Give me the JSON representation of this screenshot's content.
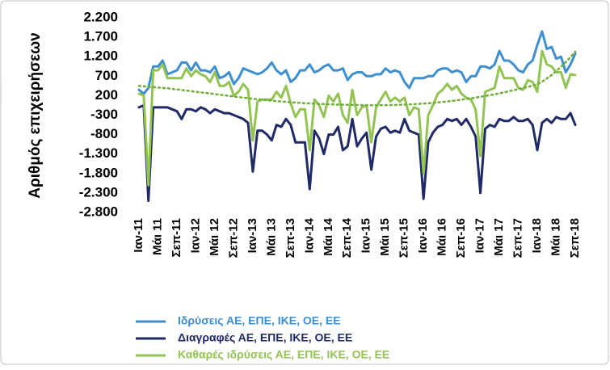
{
  "chart_data": {
    "type": "line",
    "y_label": "Αριθμός επιχειρήσεων",
    "categories": [
      "Ιαν-11",
      null,
      null,
      null,
      "Μάι 11",
      null,
      null,
      null,
      "Σεπ-11",
      null,
      null,
      null,
      "Ιαν-12",
      null,
      null,
      null,
      "Μάι 12",
      null,
      null,
      null,
      "Σεπ-12",
      null,
      null,
      null,
      "Ιαν-13",
      null,
      null,
      null,
      "Μάι 13",
      null,
      null,
      null,
      "Σεπ-13",
      null,
      null,
      null,
      "Ιαν-14",
      null,
      null,
      null,
      "Μάι 14",
      null,
      null,
      null,
      "Σεπ-14",
      null,
      null,
      null,
      "Ιαν-15",
      null,
      null,
      null,
      "Μάι 15",
      null,
      null,
      null,
      "Σεπ-15",
      null,
      null,
      null,
      "Ιαν-16",
      null,
      null,
      null,
      "Μάι 16",
      null,
      null,
      null,
      "Σεπ-16",
      null,
      null,
      null,
      "Ιαν-17",
      null,
      null,
      null,
      "Μάι 17",
      null,
      null,
      null,
      "Σεπ-17",
      null,
      null,
      null,
      "Ιαν-18",
      null,
      null,
      null,
      "Μάι 18",
      null,
      null,
      null,
      "Σεπ-18"
    ],
    "series": [
      {
        "name": "Ιδρύσεις ΑΕ, ΕΠΕ, ΙΚΕ, ΟΕ, ΕΕ",
        "color": "#3d8fd0",
        "values": [
          350,
          250,
          400,
          950,
          950,
          1100,
          750,
          800,
          850,
          1050,
          1050,
          850,
          1050,
          850,
          850,
          800,
          950,
          650,
          700,
          800,
          500,
          650,
          900,
          850,
          800,
          750,
          800,
          900,
          1050,
          850,
          750,
          850,
          550,
          650,
          850,
          850,
          1000,
          800,
          850,
          950,
          1000,
          850,
          850,
          900,
          600,
          750,
          800,
          800,
          700,
          700,
          750,
          750,
          900,
          800,
          850,
          800,
          550,
          400,
          650,
          650,
          650,
          700,
          700,
          850,
          900,
          900,
          800,
          850,
          800,
          550,
          700,
          700,
          950,
          950,
          900,
          1000,
          1350,
          1100,
          1100,
          1000,
          850,
          800,
          1000,
          1100,
          1500,
          1850,
          1400,
          1450,
          1150,
          1200,
          800,
          1000,
          1280
        ]
      },
      {
        "name": "Διαγραφές ΑΕ, ΕΠΕ, ΙΚΕ, ΟΕ, ΕΕ",
        "color": "#1f2a66",
        "values": [
          -100,
          -50,
          -2500,
          -100,
          -100,
          -100,
          -100,
          -150,
          -200,
          -400,
          -150,
          -150,
          -200,
          -100,
          -150,
          -250,
          -150,
          -200,
          -250,
          -250,
          -300,
          -350,
          -400,
          -500,
          -1750,
          -700,
          -700,
          -800,
          -950,
          -550,
          -600,
          -400,
          -550,
          -1000,
          -1000,
          -1000,
          -2200,
          -700,
          -900,
          -1300,
          -800,
          -800,
          -600,
          -1200,
          -1100,
          -400,
          -1100,
          -900,
          -750,
          -1700,
          -850,
          -650,
          -600,
          -750,
          -700,
          -750,
          -400,
          -700,
          -750,
          -800,
          -2450,
          -1000,
          -750,
          -600,
          -550,
          -400,
          -450,
          -400,
          -550,
          -400,
          -600,
          -850,
          -2300,
          -650,
          -550,
          -600,
          -400,
          -450,
          -450,
          -350,
          -450,
          -450,
          -400,
          -550,
          -1200,
          -500,
          -400,
          -500,
          -350,
          -400,
          -400,
          -250,
          -550
        ]
      },
      {
        "name": "Καθαρές ιδρύσεις ΑΕ, ΕΠΕ, ΙΚΕ, ΟΕ, ΕΕ",
        "color": "#92c353",
        "values": [
          250,
          200,
          -2100,
          850,
          850,
          1000,
          650,
          650,
          650,
          650,
          900,
          700,
          850,
          750,
          700,
          550,
          800,
          450,
          450,
          550,
          200,
          300,
          500,
          350,
          -950,
          50,
          100,
          100,
          100,
          300,
          150,
          450,
          0,
          -350,
          -150,
          -150,
          -1200,
          100,
          -50,
          -350,
          200,
          50,
          250,
          -300,
          -500,
          350,
          -300,
          -100,
          -50,
          -1000,
          -100,
          100,
          300,
          50,
          150,
          50,
          150,
          -300,
          -100,
          -150,
          -1800,
          -300,
          -50,
          250,
          350,
          500,
          350,
          450,
          250,
          150,
          100,
          -150,
          -1350,
          300,
          350,
          400,
          950,
          650,
          650,
          650,
          400,
          350,
          600,
          550,
          300,
          1350,
          1000,
          950,
          800,
          800,
          400,
          750,
          730
        ]
      },
      {
        "color": "#6fae3a",
        "style": "dotted",
        "values": [
          450,
          440,
          430,
          420,
          410,
          400,
          390,
          375,
          360,
          345,
          330,
          315,
          300,
          285,
          270,
          255,
          240,
          225,
          210,
          195,
          180,
          165,
          150,
          135,
          120,
          108,
          96,
          84,
          72,
          60,
          50,
          40,
          30,
          22,
          14,
          6,
          0,
          -6,
          -12,
          -18,
          -22,
          -26,
          -30,
          -33,
          -36,
          -38,
          -40,
          -42,
          -43,
          -44,
          -44,
          -44,
          -43,
          -41,
          -38,
          -34,
          -30,
          -25,
          -19,
          -12,
          -4,
          5,
          15,
          26,
          38,
          51,
          65,
          80,
          96,
          113,
          131,
          150,
          170,
          191,
          213,
          236,
          260,
          285,
          311,
          338,
          366,
          395,
          425,
          456,
          490,
          560,
          640,
          730,
          830,
          940,
          1060,
          1190,
          1330
        ]
      }
    ],
    "ylim": [
      -2800,
      2200
    ],
    "yticks": [
      {
        "value": -2800,
        "label": "-2.800"
      },
      {
        "value": -2300,
        "label": "-2.300"
      },
      {
        "value": -1800,
        "label": "-1.800"
      },
      {
        "value": -1300,
        "label": "-1.300"
      },
      -800,
      -300,
      200,
      700,
      {
        "value": 1200,
        "label": "1.200"
      },
      {
        "value": 1700,
        "label": "1.700"
      },
      {
        "value": 2200,
        "label": "2.200"
      }
    ],
    "grid": false
  }
}
